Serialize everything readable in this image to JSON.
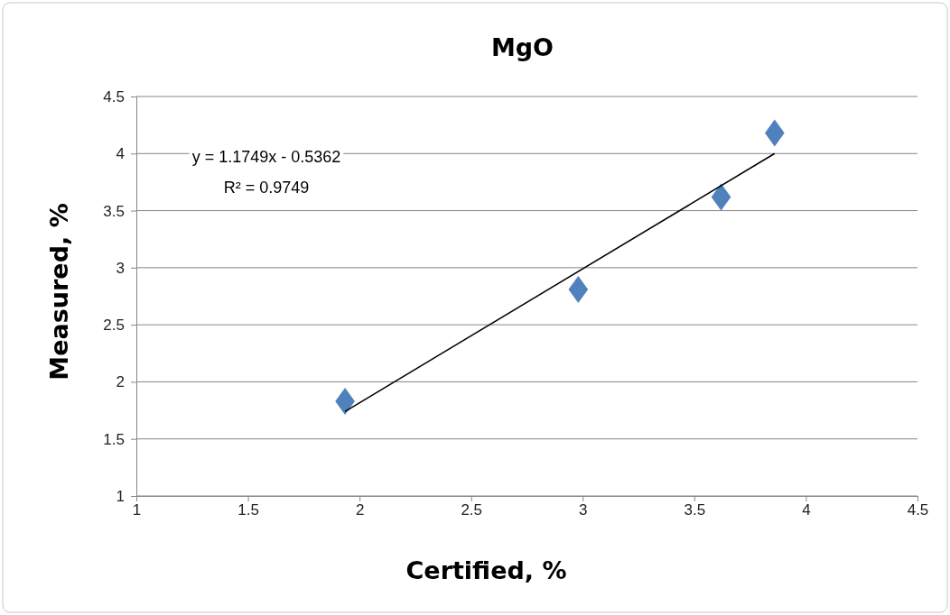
{
  "chart_data": {
    "type": "scatter",
    "title": "MgO",
    "xlabel": "Certified, %",
    "ylabel": "Measured, %",
    "xlim": [
      1,
      4.5
    ],
    "xticks": [
      1,
      1.5,
      2,
      2.5,
      3,
      3.5,
      4,
      4.5
    ],
    "ylim": [
      1,
      4.5
    ],
    "yticks": [
      1,
      1.5,
      2,
      2.5,
      3,
      3.5,
      4,
      4.5
    ],
    "grid": "y",
    "marker": "diamond",
    "series": [
      {
        "color": "#4f81bd",
        "x": [
          1.935,
          2.98,
          3.62,
          3.86
        ],
        "values": [
          1.83,
          2.81,
          3.62,
          4.18
        ]
      },
      {
        "type": "line",
        "color": "#000000",
        "x": [
          1.935,
          3.86
        ],
        "values": [
          1.74,
          4.0
        ],
        "line_style": "solid",
        "marker": "none"
      }
    ],
    "annotations": [
      "y = 1.1749x - 0.5362",
      "R² = 0.9749"
    ]
  }
}
